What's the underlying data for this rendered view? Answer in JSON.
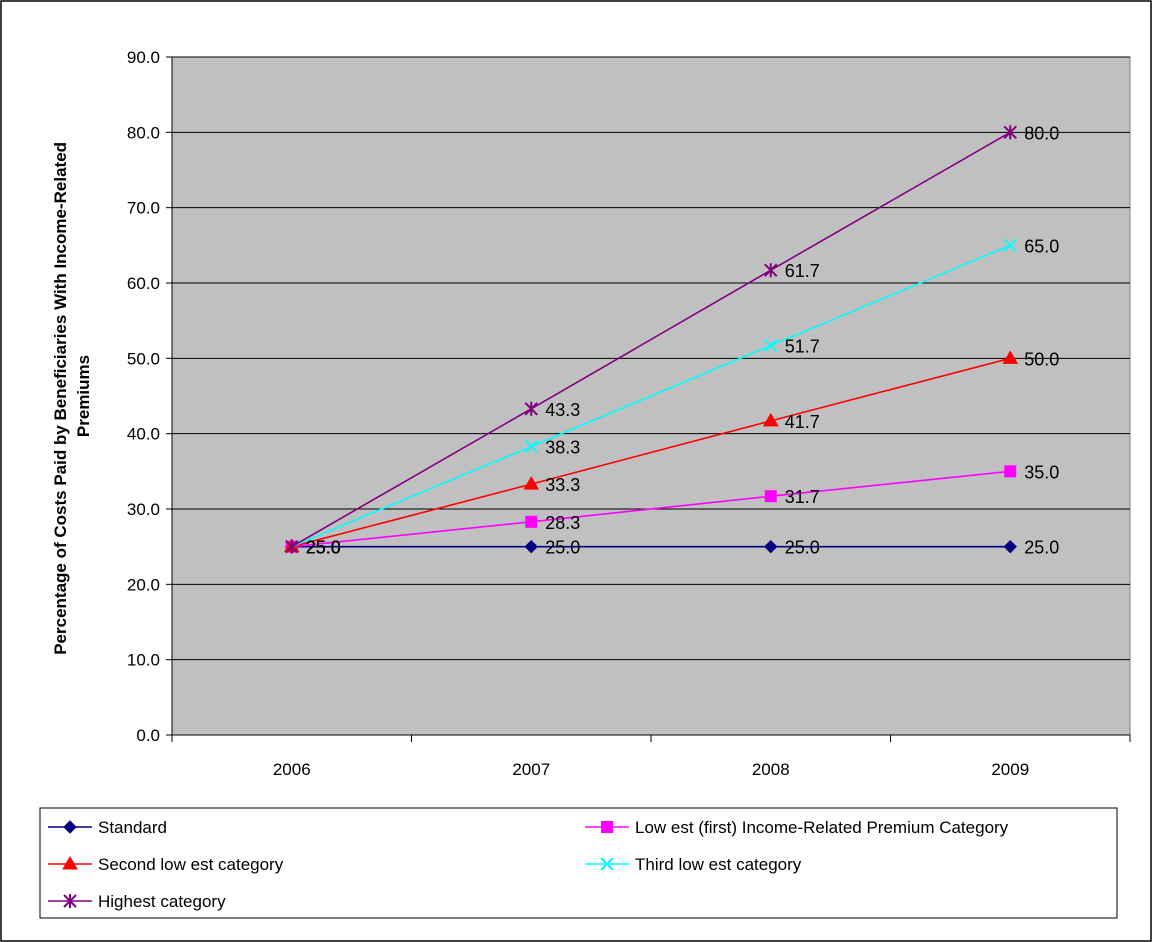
{
  "chart_data": {
    "type": "line",
    "title": "",
    "xlabel": "",
    "ylabel_lines": [
      "Percentage of Costs Paid by Beneficiaries With Income-Related",
      "Premiums"
    ],
    "ylim": [
      0,
      90
    ],
    "ytick_step": 10,
    "yticks": [
      "0.0",
      "10.0",
      "20.0",
      "30.0",
      "40.0",
      "50.0",
      "60.0",
      "70.0",
      "80.0",
      "90.0"
    ],
    "categories": [
      "2006",
      "2007",
      "2008",
      "2009"
    ],
    "grid": "horizontal",
    "legend_position": "bottom",
    "series": [
      {
        "name": "Standard",
        "values": [
          25.0,
          25.0,
          25.0,
          25.0
        ],
        "labels": [
          "25.0",
          "25.0",
          "25.0",
          "25.0"
        ],
        "color": "#000080",
        "marker": "diamond"
      },
      {
        "name": "Low est (first) Income-Related Premium Category",
        "values": [
          25.0,
          28.3,
          31.7,
          35.0
        ],
        "labels": [
          "25.0",
          "28.3",
          "31.7",
          "35.0"
        ],
        "color": "#ff00ff",
        "marker": "square"
      },
      {
        "name": "Second low est category",
        "values": [
          25.0,
          33.3,
          41.7,
          50.0
        ],
        "labels": [
          "25.0",
          "33.3",
          "41.7",
          "50.0"
        ],
        "color": "#ff0000",
        "marker": "triangle"
      },
      {
        "name": "Third low est category",
        "values": [
          25.0,
          38.3,
          51.7,
          65.0
        ],
        "labels": [
          "25.0",
          "38.3",
          "51.7",
          "65.0"
        ],
        "color": "#00ffff",
        "marker": "x"
      },
      {
        "name": "Highest category",
        "values": [
          25.0,
          43.3,
          61.7,
          80.0
        ],
        "labels": [
          "25.0",
          "43.3",
          "61.7",
          "80.0"
        ],
        "color": "#800080",
        "marker": "star"
      }
    ]
  }
}
